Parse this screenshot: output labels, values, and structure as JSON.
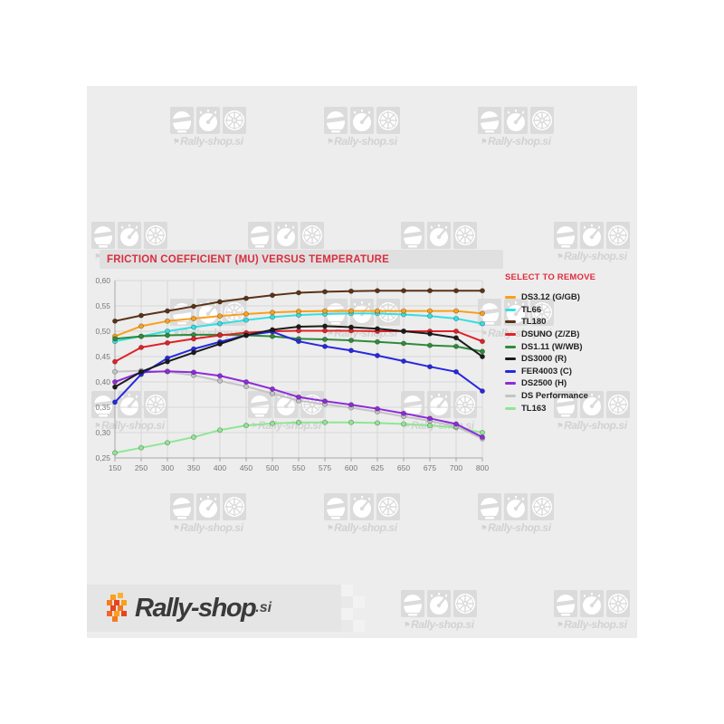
{
  "colors": {
    "title_red": "#D72F3F",
    "legend_header_red": "#E32A3C",
    "panel_bg": "#EDEDED",
    "grid": "#D8D8D8",
    "axis": "#A6A6A6",
    "tick_text": "#777777"
  },
  "watermark": {
    "text": "Rally-shop.si",
    "flag_glyph": "⚑"
  },
  "footer_logo": {
    "text_main": "Rally-shop",
    "text_suffix": ".si"
  },
  "chart_data": {
    "type": "line",
    "title": "FRICTION COEFFICIENT (MU) VERSUS TEMPERATURE",
    "legend_header": "SELECT TO REMOVE",
    "legend_position": "right",
    "grid": true,
    "xlabel": "",
    "ylabel": "",
    "categories": [
      150,
      250,
      300,
      350,
      400,
      450,
      500,
      550,
      575,
      600,
      625,
      650,
      675,
      700,
      800
    ],
    "ylim": [
      0.25,
      0.6
    ],
    "ytick_step": 0.05,
    "ytick_labels": [
      "0,25",
      "0,30",
      "0,35",
      "0,40",
      "0,45",
      "0,50",
      "0,55",
      "0,60"
    ],
    "draw_order": [
      9,
      8,
      7,
      1,
      0,
      4,
      3,
      6,
      5,
      2
    ],
    "series": [
      {
        "name": "DS3.12 (G/GB)",
        "color": "#F9A01B",
        "values": [
          0.49,
          0.51,
          0.52,
          0.525,
          0.53,
          0.534,
          0.537,
          0.539,
          0.54,
          0.54,
          0.54,
          0.54,
          0.54,
          0.54,
          0.535
        ]
      },
      {
        "name": "TL66",
        "color": "#35DEE2",
        "values": [
          0.48,
          0.49,
          0.5,
          0.508,
          0.515,
          0.522,
          0.528,
          0.532,
          0.534,
          0.535,
          0.535,
          0.533,
          0.53,
          0.525,
          0.515
        ]
      },
      {
        "name": "TL180",
        "color": "#5B3318",
        "values": [
          0.52,
          0.531,
          0.54,
          0.549,
          0.558,
          0.565,
          0.571,
          0.576,
          0.578,
          0.579,
          0.58,
          0.58,
          0.58,
          0.58,
          0.58
        ]
      },
      {
        "name": "DSUNO (Z/ZB)",
        "color": "#E02227",
        "values": [
          0.44,
          0.468,
          0.477,
          0.485,
          0.492,
          0.497,
          0.5,
          0.501,
          0.501,
          0.501,
          0.5,
          0.5,
          0.5,
          0.5,
          0.48
        ]
      },
      {
        "name": "DS1.11 (W/WB)",
        "color": "#2F8B3B",
        "values": [
          0.485,
          0.49,
          0.492,
          0.493,
          0.493,
          0.492,
          0.49,
          0.485,
          0.484,
          0.482,
          0.479,
          0.476,
          0.472,
          0.47,
          0.46
        ]
      },
      {
        "name": "DS3000 (R)",
        "color": "#1B1B1B",
        "values": [
          0.39,
          0.42,
          0.44,
          0.458,
          0.475,
          0.492,
          0.503,
          0.509,
          0.51,
          0.508,
          0.505,
          0.5,
          0.495,
          0.487,
          0.45
        ]
      },
      {
        "name": "FER4003 (C)",
        "color": "#2728DF",
        "values": [
          0.36,
          0.415,
          0.447,
          0.465,
          0.479,
          0.492,
          0.499,
          0.48,
          0.47,
          0.462,
          0.452,
          0.441,
          0.43,
          0.42,
          0.382
        ]
      },
      {
        "name": "DS2500 (H)",
        "color": "#8F2BDB",
        "values": [
          0.4,
          0.419,
          0.421,
          0.419,
          0.412,
          0.4,
          0.386,
          0.37,
          0.362,
          0.355,
          0.347,
          0.338,
          0.328,
          0.317,
          0.291
        ]
      },
      {
        "name": "DS Performance",
        "color": "#C4C4C4",
        "values": [
          0.42,
          0.422,
          0.42,
          0.413,
          0.402,
          0.391,
          0.377,
          0.363,
          0.356,
          0.349,
          0.341,
          0.332,
          0.323,
          0.312,
          0.288
        ]
      },
      {
        "name": "TL163",
        "color": "#8FE694",
        "values": [
          0.26,
          0.27,
          0.28,
          0.291,
          0.305,
          0.314,
          0.318,
          0.32,
          0.32,
          0.32,
          0.319,
          0.317,
          0.314,
          0.31,
          0.3
        ]
      }
    ]
  }
}
